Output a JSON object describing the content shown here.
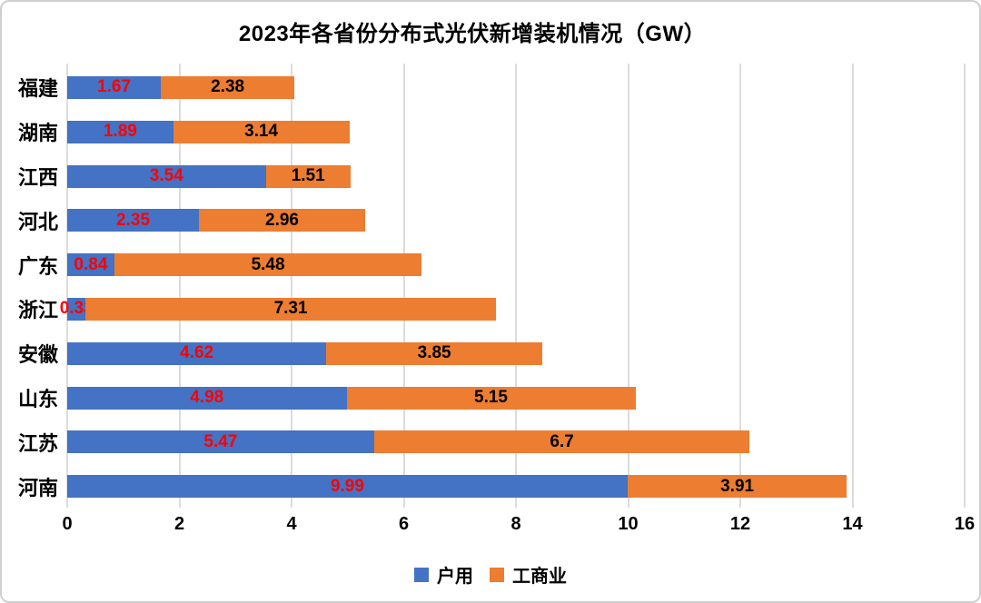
{
  "title": "2023年各省份分布式光伏新增装机情况（GW）",
  "chart_data": {
    "type": "bar",
    "orientation": "horizontal",
    "stacked": true,
    "title": "2023年各省份分布式光伏新增装机情况（GW）",
    "xlabel": "",
    "ylabel": "",
    "categories": [
      "福建",
      "湖南",
      "江西",
      "河北",
      "广东",
      "浙江",
      "安徽",
      "山东",
      "江苏",
      "河南"
    ],
    "series": [
      {
        "name": "户用",
        "color": "#4472C4",
        "label_color": "#FF0000",
        "values": [
          1.67,
          1.89,
          3.54,
          2.35,
          0.84,
          0.33,
          4.62,
          4.98,
          5.47,
          9.99
        ]
      },
      {
        "name": "工商业",
        "color": "#ED7D31",
        "label_color": "#000000",
        "values": [
          2.38,
          3.14,
          1.51,
          2.96,
          5.48,
          7.31,
          3.85,
          5.15,
          6.7,
          3.91
        ]
      }
    ],
    "xlim": [
      0,
      16
    ],
    "x_ticks": [
      0,
      2,
      4,
      6,
      8,
      10,
      12,
      14,
      16
    ],
    "grid": "vertical",
    "gridline_color": "#DCDCDC",
    "legend_position": "bottom",
    "background_color": "#FFFFFF",
    "border_color": "#CFCFCF"
  }
}
